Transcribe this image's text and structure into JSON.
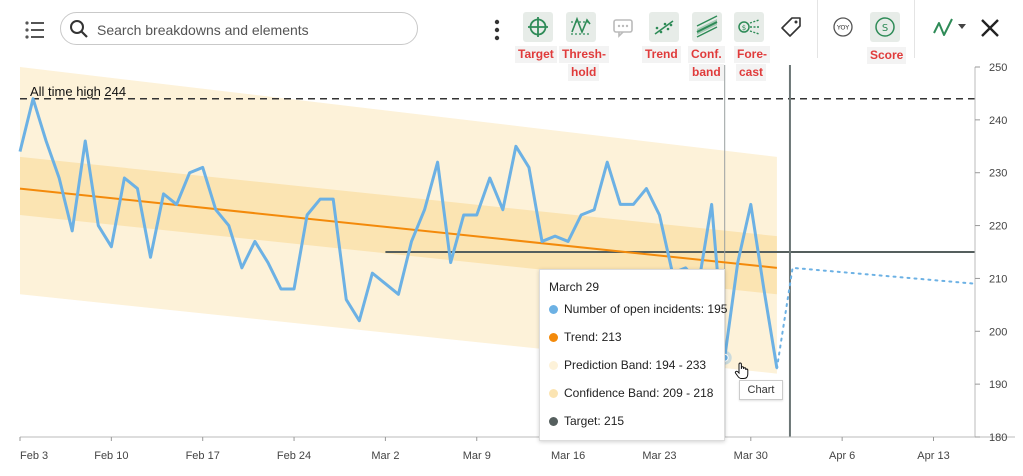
{
  "search": {
    "placeholder": "Search breakdowns and elements"
  },
  "tools": {
    "target": "Target",
    "threshold_1": "Thresh-",
    "threshold_2": "hold",
    "trend": "Trend",
    "conf_1": "Conf.",
    "conf_2": "band",
    "forecast_1": "Fore-",
    "forecast_2": "cast",
    "yoy": "YOY",
    "score_icon": "S",
    "score": "Score"
  },
  "icons": {
    "list": "list-icon",
    "search": "search-icon",
    "more": "more-vertical-icon",
    "target": "target-icon",
    "threshold": "threshold-icon",
    "comment": "comment-icon",
    "trend": "trend-icon",
    "conf": "confidence-band-icon",
    "forecast": "forecast-icon",
    "tag": "tag-icon",
    "yoy": "yoy-icon",
    "score": "score-icon",
    "charttype": "line-chart-type-icon",
    "close": "close-icon"
  },
  "colors": {
    "series": "#6cb1e4",
    "trend": "#f38a0b",
    "prediction_band": "#fdf2d9",
    "confidence_band": "#fbe4b2",
    "target": "#555f5e",
    "label_red": "#e03b3b",
    "tool_green": "#2e8b57"
  },
  "tooltip": {
    "date": "March 29",
    "series": "Number of open incidents: 195",
    "trend": "Trend: 213",
    "prediction": "Prediction Band: 194 - 233",
    "confidence": "Confidence Band: 209 - 218",
    "target": "Target: 215"
  },
  "hover_label": "Chart",
  "chart_data": {
    "type": "line",
    "annotation": "All time high 244",
    "ylim": [
      180,
      250
    ],
    "y_ticks": [
      180,
      190,
      200,
      210,
      220,
      230,
      240,
      250
    ],
    "x_ticks": [
      "Feb 3",
      "Feb 10",
      "Feb 17",
      "Feb 24",
      "Mar 2",
      "Mar 9",
      "Mar 16",
      "Mar 23",
      "Mar 30",
      "Apr 6",
      "Apr 13"
    ],
    "x_start": "2025-02-03",
    "series": [
      {
        "name": "Number of open incidents",
        "values": [
          234,
          244,
          236,
          229,
          219,
          236,
          220,
          216,
          229,
          227,
          214,
          226,
          224,
          230,
          231,
          223,
          220,
          212,
          217,
          213,
          208,
          208,
          222,
          225,
          225,
          206,
          202,
          211,
          209,
          207,
          217,
          223,
          232,
          213,
          222,
          222,
          229,
          223,
          235,
          231,
          217,
          218,
          217,
          222,
          223,
          232,
          224,
          224,
          227,
          222,
          211,
          212,
          209,
          224,
          195,
          213,
          224,
          208,
          193
        ]
      }
    ],
    "all_time_high": 244,
    "target": 215,
    "trend": {
      "start": 227,
      "end": 212
    },
    "confidence_band": {
      "start": [
        222,
        233
      ],
      "end": [
        207,
        218
      ]
    },
    "prediction_band": {
      "start": [
        207,
        250
      ],
      "end": [
        192,
        233
      ]
    },
    "forecast": {
      "start": 212,
      "end": 209
    },
    "hover_date": "March 29",
    "hover_value": 195
  }
}
